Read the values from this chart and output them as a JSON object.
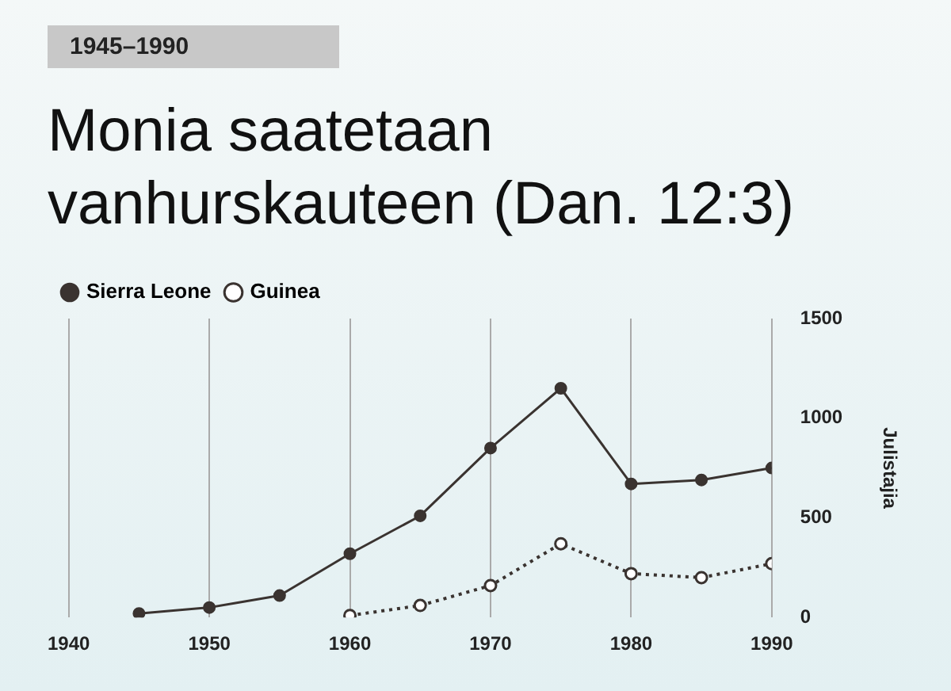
{
  "chart_data": {
    "type": "line",
    "subtitle": "1945–1990",
    "title": "Monia saatetaan vanhurskauteen (Dan. 12:3)",
    "ylabel": "Julistajia",
    "x": [
      1945,
      1950,
      1955,
      1960,
      1965,
      1970,
      1975,
      1980,
      1985,
      1990
    ],
    "series": [
      {
        "name": "Sierra Leone",
        "color": "#3a3330",
        "marker": "circle",
        "line_style": "solid",
        "values": [
          20,
          50,
          110,
          320,
          510,
          850,
          1150,
          670,
          690,
          750
        ]
      },
      {
        "name": "Guinea",
        "color": "#3a3330",
        "marker": "circle",
        "line_style": "dotted",
        "values": [
          null,
          null,
          null,
          10,
          60,
          160,
          370,
          220,
          200,
          270
        ]
      }
    ],
    "xlim": [
      1940,
      1990
    ],
    "xticks": [
      1940,
      1950,
      1960,
      1970,
      1980,
      1990
    ],
    "ylim": [
      0,
      1500
    ],
    "yticks": [
      0,
      500,
      1000,
      1500
    ],
    "grid": "x",
    "legend": "top left"
  }
}
